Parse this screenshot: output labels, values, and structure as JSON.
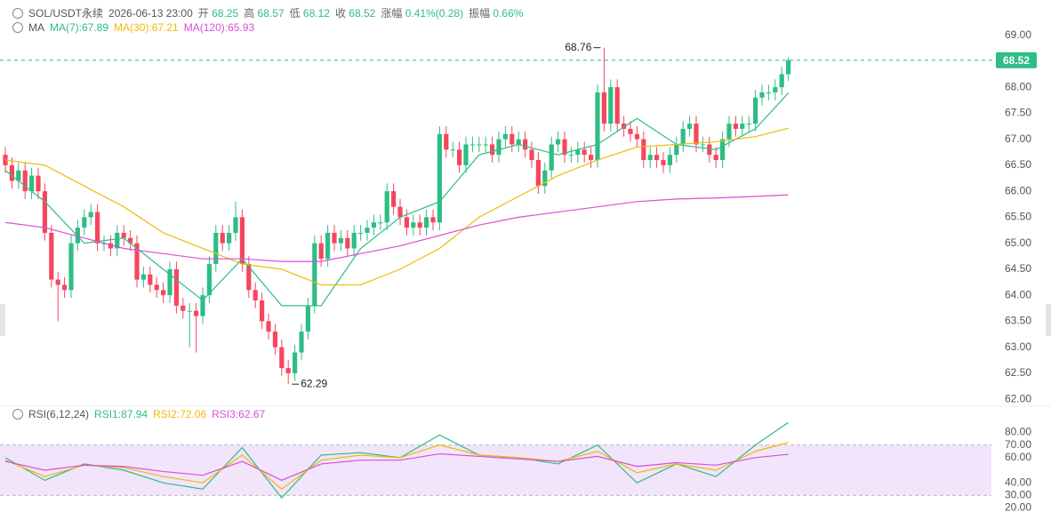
{
  "chart_data": {
    "type": "candlestick",
    "title": "SOL/USDT永续",
    "subtitle": "2026-06-13 23:00",
    "quote": {
      "open_label": "开",
      "high_label": "高",
      "low_label": "低",
      "close_label": "收",
      "change_label": "涨幅",
      "change": "0.41%(0.28)",
      "amplitude_label": "振幅",
      "amplitude": "0.66%"
    },
    "up_color": "#2ebd85",
    "down_color": "#f6465d",
    "ylim": [
      61.9,
      69.25
    ],
    "yticks": [
      {
        "value": 62,
        "label": "62.00"
      },
      {
        "value": 62.5,
        "label": "62.50"
      },
      {
        "value": 63,
        "label": "63.00"
      },
      {
        "value": 63.5,
        "label": "63.50"
      },
      {
        "value": 64,
        "label": "64.00"
      },
      {
        "value": 64.5,
        "label": "64.50"
      },
      {
        "value": 65,
        "label": "65.00"
      },
      {
        "value": 65.5,
        "label": "65.50"
      },
      {
        "value": 66,
        "label": "66.00"
      },
      {
        "value": 66.5,
        "label": "66.50"
      },
      {
        "value": 67,
        "label": "67.00"
      },
      {
        "value": 67.5,
        "label": "67.50"
      },
      {
        "value": 68,
        "label": "68.00"
      },
      {
        "value": 68.5,
        "label": "68.50"
      },
      {
        "value": 69,
        "label": "69.00"
      }
    ],
    "open": [
      66.7,
      66.5,
      66.2,
      66.4,
      66.0,
      66.3,
      66.0,
      65.2,
      64.3,
      64.2,
      64.1,
      65.0,
      65.3,
      65.5,
      65.6,
      65.0,
      65.0,
      64.9,
      65.2,
      65.1,
      65.0,
      64.3,
      64.4,
      64.2,
      64.1,
      64.0,
      64.5,
      63.8,
      63.7,
      63.7,
      63.6,
      64.0,
      64.6,
      65.2,
      65.0,
      65.2,
      65.5,
      64.6,
      64.1,
      63.9,
      63.5,
      63.3,
      63.0,
      62.6,
      62.5,
      62.9,
      63.3,
      63.8,
      65.0,
      64.7,
      65.2,
      65.0,
      65.1,
      64.9,
      65.2,
      65.2,
      65.3,
      65.4,
      65.4,
      66.0,
      65.7,
      65.5,
      65.3,
      65.4,
      65.3,
      65.5,
      65.4,
      67.1,
      66.8,
      66.8,
      66.5,
      66.9,
      66.9,
      66.9,
      66.9,
      66.7,
      67.0,
      67.1,
      66.9,
      67.0,
      66.8,
      66.6,
      66.1,
      66.4,
      66.9,
      67.0,
      66.7,
      66.7,
      66.8,
      66.7,
      66.6,
      67.9,
      67.3,
      68.0,
      67.3,
      67.2,
      67.1,
      67.0,
      66.6,
      66.7,
      66.6,
      66.5,
      66.7,
      66.9,
      67.2,
      67.3,
      66.9,
      66.9,
      66.7,
      66.6,
      67.0,
      67.3,
      67.2,
      67.3,
      67.3,
      67.8,
      67.9,
      67.9,
      68.0,
      68.25
    ],
    "high": [
      66.85,
      66.65,
      66.55,
      66.55,
      66.45,
      66.45,
      66.15,
      65.35,
      64.45,
      64.35,
      65.15,
      65.45,
      65.65,
      65.75,
      65.75,
      65.15,
      65.15,
      65.35,
      65.35,
      65.25,
      65.15,
      64.55,
      64.55,
      64.35,
      64.25,
      64.65,
      64.65,
      63.95,
      63.85,
      63.85,
      64.15,
      64.75,
      65.35,
      65.35,
      65.35,
      65.8,
      65.65,
      64.75,
      64.25,
      64.05,
      63.65,
      63.45,
      63.15,
      62.75,
      63.05,
      63.45,
      63.95,
      65.15,
      65.15,
      65.35,
      65.35,
      65.25,
      65.25,
      65.35,
      65.35,
      65.45,
      65.55,
      65.55,
      66.15,
      66.15,
      65.85,
      65.65,
      65.55,
      65.55,
      65.65,
      65.65,
      67.25,
      67.25,
      66.95,
      66.95,
      67.05,
      67.05,
      67.05,
      67.05,
      67.05,
      67.15,
      67.25,
      67.25,
      67.15,
      67.15,
      66.95,
      66.75,
      66.55,
      67.05,
      67.15,
      67.15,
      66.85,
      66.95,
      66.95,
      66.85,
      68.05,
      68.76,
      68.15,
      68.15,
      67.45,
      67.35,
      67.25,
      67.15,
      66.85,
      66.85,
      66.75,
      66.85,
      67.05,
      67.35,
      67.45,
      67.45,
      67.05,
      67.05,
      66.85,
      67.15,
      67.45,
      67.45,
      67.45,
      67.45,
      67.95,
      68.05,
      68.05,
      68.15,
      68.4,
      68.57
    ],
    "low": [
      66.35,
      66.05,
      66.05,
      65.85,
      65.85,
      65.85,
      65.05,
      64.15,
      63.5,
      63.95,
      63.95,
      64.85,
      65.15,
      65.35,
      64.85,
      64.85,
      64.75,
      64.75,
      64.95,
      64.85,
      64.15,
      64.15,
      64.05,
      63.95,
      63.85,
      63.85,
      63.65,
      63.55,
      63.0,
      62.9,
      63.45,
      63.85,
      64.45,
      64.85,
      64.85,
      65.05,
      64.45,
      63.95,
      63.75,
      63.35,
      63.15,
      62.85,
      62.45,
      62.29,
      62.35,
      62.75,
      63.15,
      63.65,
      64.55,
      64.55,
      64.85,
      64.85,
      64.75,
      64.75,
      65.05,
      65.05,
      65.15,
      65.25,
      65.25,
      65.55,
      65.35,
      65.15,
      65.15,
      65.15,
      65.15,
      65.25,
      65.25,
      66.65,
      66.65,
      66.35,
      66.35,
      66.75,
      66.75,
      66.75,
      66.55,
      66.55,
      66.85,
      66.75,
      66.75,
      66.65,
      66.45,
      65.95,
      65.95,
      66.25,
      66.75,
      66.55,
      66.55,
      66.55,
      66.55,
      66.45,
      66.45,
      67.15,
      67.15,
      67.15,
      67.05,
      66.95,
      66.85,
      66.45,
      66.45,
      66.45,
      66.35,
      66.35,
      66.55,
      66.75,
      67.05,
      66.75,
      66.75,
      66.55,
      66.45,
      66.45,
      66.85,
      67.05,
      67.05,
      67.15,
      67.15,
      67.65,
      67.75,
      67.75,
      67.85,
      68.12
    ],
    "close": [
      66.5,
      66.2,
      66.4,
      66.0,
      66.3,
      66.0,
      65.2,
      64.3,
      64.2,
      64.1,
      65.0,
      65.3,
      65.5,
      65.6,
      65.0,
      65.0,
      64.9,
      65.2,
      65.1,
      65.0,
      64.3,
      64.4,
      64.2,
      64.1,
      64.0,
      64.5,
      63.8,
      63.7,
      63.7,
      63.6,
      64.0,
      64.6,
      65.2,
      65.0,
      65.2,
      65.5,
      64.6,
      64.1,
      63.9,
      63.5,
      63.3,
      63.0,
      62.6,
      62.5,
      62.9,
      63.3,
      63.8,
      65.0,
      64.7,
      65.2,
      65.0,
      65.1,
      64.9,
      65.2,
      65.2,
      65.3,
      65.4,
      65.4,
      66.0,
      65.7,
      65.5,
      65.3,
      65.4,
      65.3,
      65.5,
      65.4,
      67.1,
      66.8,
      66.8,
      66.5,
      66.9,
      66.9,
      66.9,
      66.9,
      66.7,
      67.0,
      67.1,
      66.9,
      67.0,
      66.8,
      66.6,
      66.1,
      66.4,
      66.9,
      67.0,
      66.7,
      66.7,
      66.8,
      66.7,
      66.6,
      67.9,
      67.3,
      68.0,
      67.3,
      67.2,
      67.1,
      67.0,
      66.6,
      66.7,
      66.6,
      66.5,
      66.7,
      66.9,
      67.2,
      67.3,
      66.9,
      66.9,
      66.7,
      66.6,
      67.0,
      67.3,
      67.2,
      67.3,
      67.3,
      67.8,
      67.9,
      67.9,
      68.0,
      68.25,
      68.52
    ],
    "ma": {
      "label": "MA",
      "series": [
        {
          "name": "MA(7):67.89",
          "color": "#2ebd85",
          "x": [
            0,
            6,
            12,
            18,
            24,
            30,
            36,
            42,
            48,
            54,
            60,
            66,
            72,
            78,
            84,
            90,
            96,
            102,
            108,
            114,
            119
          ],
          "values": [
            66.4,
            65.8,
            65.0,
            65.1,
            64.5,
            63.9,
            64.7,
            63.8,
            63.8,
            64.9,
            65.5,
            65.8,
            66.7,
            66.9,
            66.7,
            66.9,
            67.4,
            66.9,
            66.8,
            67.2,
            67.89
          ]
        },
        {
          "name": "MA(30):67.21",
          "color": "#f0b90b",
          "x": [
            0,
            6,
            12,
            18,
            24,
            30,
            36,
            42,
            48,
            54,
            60,
            66,
            72,
            78,
            84,
            90,
            96,
            102,
            108,
            114,
            119
          ],
          "values": [
            66.6,
            66.5,
            66.1,
            65.7,
            65.2,
            64.9,
            64.6,
            64.5,
            64.2,
            64.2,
            64.5,
            64.9,
            65.5,
            65.9,
            66.3,
            66.6,
            66.85,
            66.9,
            66.95,
            67.05,
            67.21
          ]
        },
        {
          "name": "MA(120):65.93",
          "color": "#d94fd5",
          "x": [
            0,
            6,
            12,
            18,
            24,
            30,
            36,
            42,
            48,
            54,
            60,
            66,
            72,
            78,
            84,
            90,
            96,
            102,
            108,
            114,
            119
          ],
          "values": [
            65.4,
            65.3,
            65.1,
            64.9,
            64.8,
            64.7,
            64.7,
            64.65,
            64.65,
            64.8,
            64.95,
            65.15,
            65.35,
            65.5,
            65.6,
            65.7,
            65.8,
            65.85,
            65.87,
            65.9,
            65.93
          ]
        }
      ]
    },
    "rsi": {
      "label": "RSI(6,12,24)",
      "ylim": [
        14,
        86
      ],
      "overbought": 70,
      "oversold": 30,
      "band_color": "#f1e4fb",
      "yticks": [
        {
          "value": 20,
          "label": "20.00"
        },
        {
          "value": 30,
          "label": "30.00"
        },
        {
          "value": 40,
          "label": "40.00"
        },
        {
          "value": 60,
          "label": "60.00"
        },
        {
          "value": 70,
          "label": "70.00"
        },
        {
          "value": 80,
          "label": "80.00"
        }
      ],
      "series": [
        {
          "name": "RSI1:87.94",
          "color": "#2ebd85",
          "x": [
            0,
            6,
            12,
            18,
            24,
            30,
            36,
            42,
            48,
            54,
            60,
            66,
            72,
            78,
            84,
            90,
            96,
            102,
            108,
            114,
            119
          ],
          "values": [
            60,
            42,
            55,
            50,
            40,
            35,
            68,
            28,
            62,
            64,
            60,
            78,
            62,
            60,
            55,
            70,
            40,
            55,
            45,
            70,
            87.94
          ]
        },
        {
          "name": "RSI2:72.06",
          "color": "#f0b90b",
          "x": [
            0,
            6,
            12,
            18,
            24,
            30,
            36,
            42,
            48,
            54,
            60,
            66,
            72,
            78,
            84,
            90,
            96,
            102,
            108,
            114,
            119
          ],
          "values": [
            58,
            45,
            54,
            52,
            45,
            40,
            62,
            35,
            58,
            62,
            60,
            70,
            62,
            60,
            57,
            65,
            48,
            55,
            50,
            65,
            72.06
          ]
        },
        {
          "name": "RSI3:62.67",
          "color": "#d94fd5",
          "x": [
            0,
            6,
            12,
            18,
            24,
            30,
            36,
            42,
            48,
            54,
            60,
            66,
            72,
            78,
            84,
            90,
            96,
            102,
            108,
            114,
            119
          ],
          "values": [
            57,
            50,
            54,
            53,
            49,
            46,
            57,
            42,
            55,
            58,
            58,
            63,
            61,
            59,
            57,
            61,
            53,
            56,
            54,
            60,
            62.67
          ]
        }
      ]
    }
  }
}
